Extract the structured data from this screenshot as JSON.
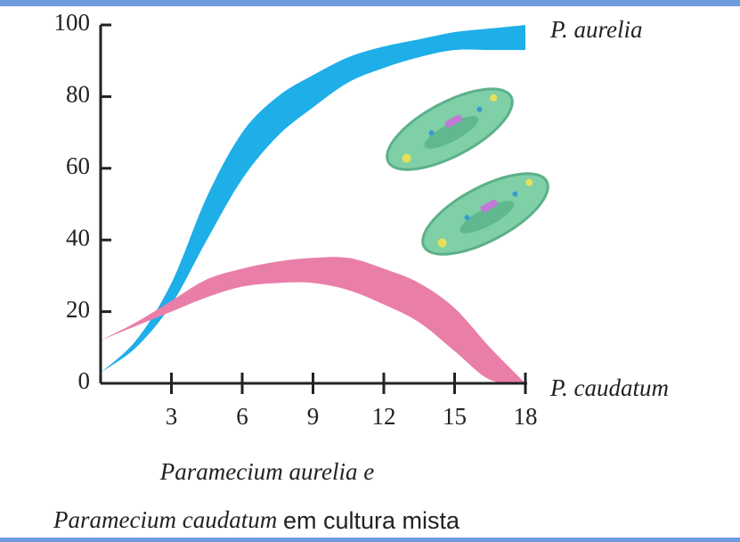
{
  "chart_data": {
    "type": "band",
    "x": [
      0,
      1.5,
      3,
      4.5,
      6,
      7.5,
      9,
      10.5,
      12,
      13.5,
      15,
      16.5,
      18
    ],
    "series": [
      {
        "name": "P. aurelia",
        "color": "#1eaee8",
        "upper": [
          3,
          12,
          28,
          52,
          70,
          80,
          86,
          91,
          94,
          96,
          98,
          99,
          100
        ],
        "lower": [
          3,
          10,
          22,
          40,
          57,
          69,
          77,
          84,
          88,
          91,
          93,
          93,
          93
        ]
      },
      {
        "name": "P. caudatum",
        "color": "#e97fa8",
        "upper": [
          12,
          17,
          23,
          29,
          32,
          34,
          35,
          35,
          32,
          28,
          21,
          10,
          0
        ],
        "lower": [
          12,
          16,
          20,
          24,
          27,
          28,
          28,
          26,
          22,
          17,
          9,
          1,
          0
        ]
      }
    ],
    "xlim": [
      0,
      18
    ],
    "xticks": [
      3,
      6,
      9,
      12,
      15,
      18
    ],
    "ylim": [
      0,
      100
    ],
    "yticks": [
      0,
      20,
      40,
      60,
      80,
      100
    ],
    "caption": {
      "line1": "Paramecium aurelia e",
      "line2_italic": "Paramecium caudatum",
      "line2_plain": "em cultura mista"
    }
  }
}
